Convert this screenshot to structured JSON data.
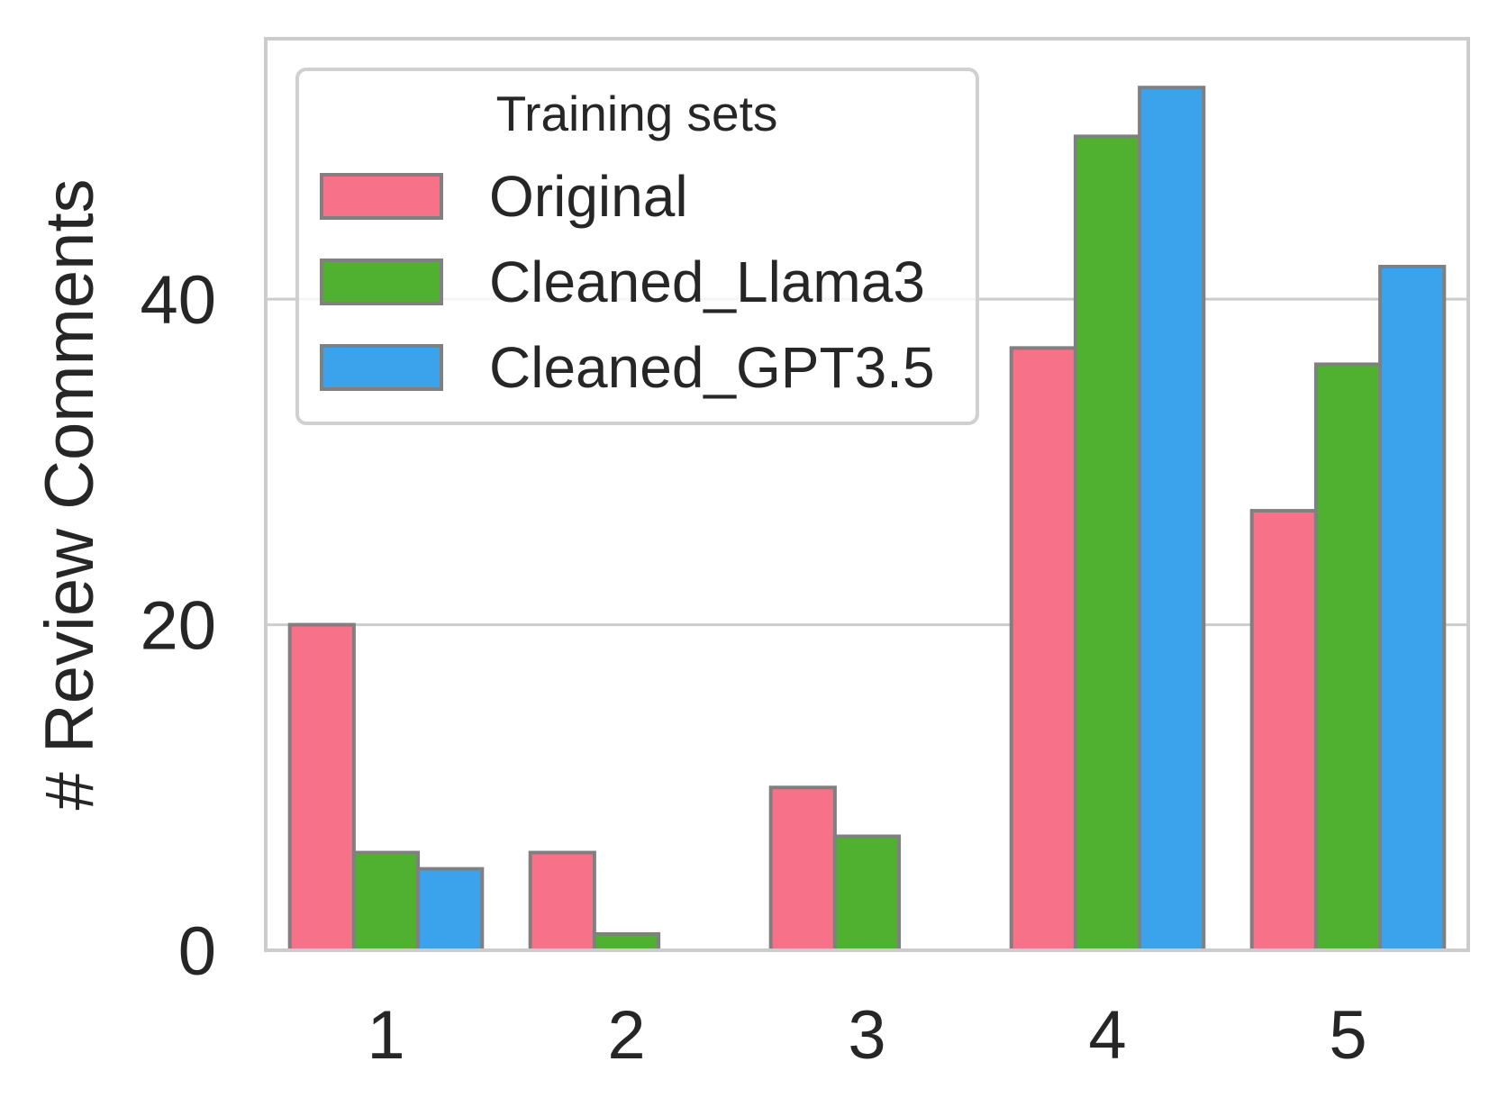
{
  "chart_data": {
    "type": "bar",
    "categories": [
      "1",
      "2",
      "3",
      "4",
      "5"
    ],
    "series": [
      {
        "name": "Original",
        "color": "#f77189",
        "values": [
          20,
          6,
          10,
          37,
          27
        ]
      },
      {
        "name": "Cleaned_Llama3",
        "color": "#50b131",
        "values": [
          6,
          1,
          7,
          50,
          36
        ]
      },
      {
        "name": "Cleaned_GPT3.5",
        "color": "#3ba3ec",
        "values": [
          5,
          0,
          0,
          53,
          42
        ]
      }
    ],
    "xlabel": "",
    "ylabel": "# Review Comments",
    "ylim": [
      0,
      56
    ],
    "yticks": [
      "0",
      "20",
      "40"
    ],
    "legend": {
      "title": "Training sets",
      "placement": "top-left"
    },
    "grid": true,
    "bar_edge_color": "#808080"
  }
}
